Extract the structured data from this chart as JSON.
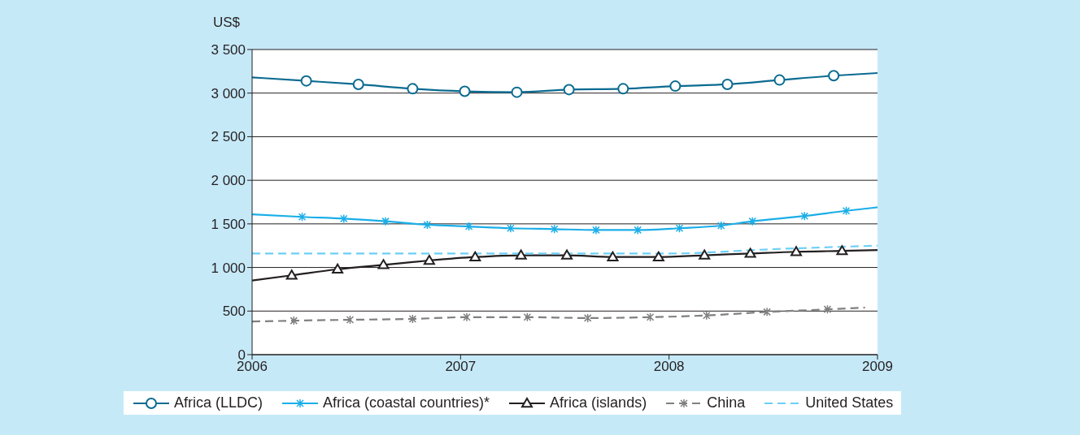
{
  "chart_data": {
    "type": "line",
    "ylabel": "US$",
    "xlim": [
      2006,
      2009
    ],
    "xticks": [
      2006,
      2007,
      2008,
      2009
    ],
    "ylim": [
      0,
      3500
    ],
    "yticks": [
      0,
      500,
      {
        "value": 1000,
        "label": "1 000"
      },
      {
        "value": 1500,
        "label": "1 500"
      },
      {
        "value": 2000,
        "label": "2 000"
      },
      {
        "value": 2500,
        "label": "2 500"
      },
      {
        "value": 3000,
        "label": "3 000"
      },
      {
        "value": 3500,
        "label": "3 500"
      }
    ],
    "grid": "y",
    "legend": "bottom",
    "series": [
      {
        "name": "Africa (LLDC)",
        "color": "#0b6b91",
        "marker": "circle",
        "line_style": "solid",
        "x": [
          2006,
          2006.26,
          2006.51,
          2006.77,
          2007.02,
          2007.27,
          2007.52,
          2007.78,
          2008.03,
          2008.28,
          2008.53,
          2008.79,
          2009
        ],
        "values": [
          3180,
          3140,
          3100,
          3050,
          3020,
          3010,
          3040,
          3050,
          3080,
          3100,
          3150,
          3200,
          3230
        ]
      },
      {
        "name": "Africa (coastal countries)*",
        "color": "#1aaee8",
        "marker": "cross",
        "line_style": "solid",
        "x": [
          2006,
          2006.24,
          2006.44,
          2006.64,
          2006.84,
          2007.04,
          2007.24,
          2007.45,
          2007.65,
          2007.85,
          2008.05,
          2008.25,
          2008.4,
          2008.65,
          2008.85,
          2009
        ],
        "values": [
          1610,
          1580,
          1560,
          1530,
          1490,
          1470,
          1450,
          1440,
          1430,
          1430,
          1450,
          1480,
          1530,
          1590,
          1650,
          1690
        ]
      },
      {
        "name": "Africa (islands)",
        "color": "#231f20",
        "marker": "triangle",
        "line_style": "solid",
        "x": [
          2006,
          2006.19,
          2006.41,
          2006.63,
          2006.85,
          2007.07,
          2007.29,
          2007.51,
          2007.73,
          2007.95,
          2008.17,
          2008.39,
          2008.61,
          2008.83,
          2009
        ],
        "values": [
          850,
          910,
          980,
          1030,
          1080,
          1120,
          1140,
          1140,
          1120,
          1120,
          1140,
          1160,
          1180,
          1190,
          1200
        ]
      },
      {
        "name": "China",
        "color": "#808080",
        "marker": "cross",
        "line_style": "dashed",
        "x": [
          2006,
          2006.2,
          2006.47,
          2006.77,
          2007.03,
          2007.32,
          2007.61,
          2007.91,
          2008.18,
          2008.47,
          2008.76,
          2008.94
        ],
        "values": [
          380,
          390,
          400,
          410,
          430,
          430,
          420,
          430,
          450,
          490,
          520,
          540
        ]
      },
      {
        "name": "United States",
        "color": "#6ccff6",
        "marker": "none",
        "line_style": "dashed",
        "x": [
          2006,
          2007,
          2007.5,
          2008,
          2008.5,
          2009
        ],
        "values": [
          1160,
          1160,
          1160,
          1160,
          1210,
          1250
        ]
      }
    ]
  }
}
